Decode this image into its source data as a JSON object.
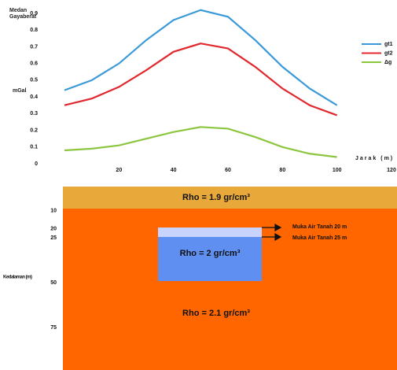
{
  "chart_data": {
    "type": "line",
    "y_title": "Medan Gayaberat",
    "y_unit": "mGal",
    "x_label": "Jarak (m)",
    "x": [
      0,
      10,
      20,
      30,
      40,
      50,
      60,
      70,
      80,
      90,
      100
    ],
    "series": [
      {
        "name": "gt1",
        "color": "#3a9ad9",
        "values": [
          0.44,
          0.5,
          0.6,
          0.74,
          0.86,
          0.92,
          0.88,
          0.74,
          0.58,
          0.45,
          0.35
        ]
      },
      {
        "name": "gt2",
        "color": "#e0282e",
        "values": [
          0.35,
          0.39,
          0.46,
          0.56,
          0.67,
          0.72,
          0.69,
          0.58,
          0.45,
          0.35,
          0.29
        ]
      },
      {
        "name": "Δg",
        "color": "#8cc63f",
        "values": [
          0.08,
          0.09,
          0.11,
          0.15,
          0.19,
          0.22,
          0.21,
          0.16,
          0.1,
          0.06,
          0.04
        ]
      }
    ],
    "xlim": [
      0,
      120
    ],
    "xticks": [
      20,
      40,
      60,
      80,
      100,
      120
    ],
    "ylim": [
      0,
      0.9
    ],
    "yticks": [
      0,
      0.1,
      0.2,
      0.3,
      0.4,
      0.5,
      0.6,
      0.7,
      0.8,
      0.9
    ],
    "grid": false,
    "legend": "right"
  },
  "section": {
    "depth_label": "Kedalaman (m)",
    "depth_ticks": [
      "10",
      "20",
      "25",
      "50",
      "75"
    ],
    "layer_top": "Rho = 1.9 gr/cm³",
    "layer_box": "Rho = 2 gr/cm³",
    "layer_main": "Rho = 2.1 gr/cm³",
    "water_table": [
      "Muka Air Tanah 20 m",
      "Muka Air Tanah 25 m"
    ]
  }
}
